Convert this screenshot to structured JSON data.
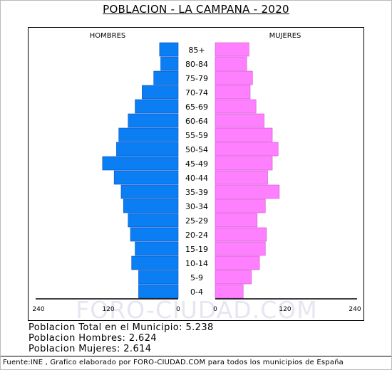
{
  "chart_data": {
    "type": "bar",
    "title": "POBLACION - LA CAMPANA - 2020",
    "categories": [
      "85+",
      "80-84",
      "75-79",
      "70-74",
      "65-69",
      "60-64",
      "55-59",
      "50-54",
      "45-49",
      "40-44",
      "35-39",
      "30-34",
      "25-29",
      "20-24",
      "15-19",
      "10-14",
      "5-9",
      "0-4"
    ],
    "series": [
      {
        "name": "HOMBRES",
        "color": "#0a7ef2",
        "values": [
          32,
          30,
          42,
          62,
          74,
          86,
          102,
          106,
          130,
          110,
          98,
          94,
          86,
          82,
          74,
          80,
          68,
          68
        ]
      },
      {
        "name": "MUJERES",
        "color": "#ff80ff",
        "values": [
          58,
          54,
          64,
          60,
          70,
          84,
          98,
          108,
          98,
          90,
          110,
          86,
          72,
          88,
          86,
          76,
          62,
          48
        ]
      }
    ],
    "xtick_labels": [
      "240",
      "120",
      "0",
      "0",
      "120",
      "240"
    ],
    "xlim": [
      0,
      240
    ],
    "watermark": "FORO-CIUDAD.COM"
  },
  "stats": {
    "total": "Poblacion Total en el Municipio: 5.238",
    "hombres": "Poblacion Hombres: 2.624",
    "mujeres": "Poblacion Mujeres: 2.614"
  },
  "footer": "Fuente:INE , Grafico elaborado por FORO-CIUDAD.COM para todos los municipios de España"
}
